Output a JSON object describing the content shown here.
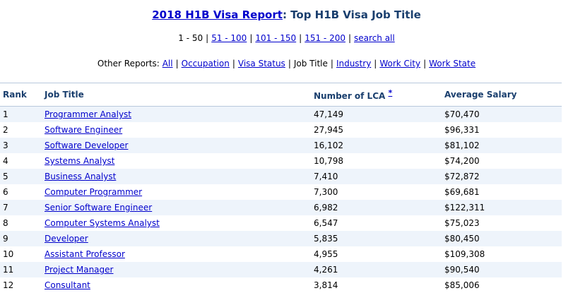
{
  "header": {
    "title_link": "2018 H1B Visa Report",
    "title_rest": ": Top H1B Visa Job Title"
  },
  "pager": {
    "current": "1 - 50",
    "links": [
      "51 - 100",
      "101 - 150",
      "151 - 200",
      "search all"
    ]
  },
  "reports": {
    "label": "Other Reports:",
    "all": "All",
    "occupation": "Occupation",
    "visa_status": "Visa Status",
    "job_title": "Job Title",
    "industry": "Industry",
    "work_city": "Work City",
    "work_state": "Work State"
  },
  "table": {
    "headers": {
      "rank": "Rank",
      "job_title": "Job Title",
      "count": "Number of LCA",
      "count_star": "*",
      "salary": "Average Salary"
    },
    "rows": [
      {
        "rank": "1",
        "title": "Programmer Analyst",
        "count": "47,149",
        "salary": "$70,470"
      },
      {
        "rank": "2",
        "title": "Software Engineer",
        "count": "27,945",
        "salary": "$96,331"
      },
      {
        "rank": "3",
        "title": "Software Developer",
        "count": "16,102",
        "salary": "$81,102"
      },
      {
        "rank": "4",
        "title": "Systems Analyst",
        "count": "10,798",
        "salary": "$74,200"
      },
      {
        "rank": "5",
        "title": "Business Analyst",
        "count": "7,410",
        "salary": "$72,872"
      },
      {
        "rank": "6",
        "title": "Computer Programmer",
        "count": "7,300",
        "salary": "$69,681"
      },
      {
        "rank": "7",
        "title": "Senior Software Engineer",
        "count": "6,982",
        "salary": "$122,311"
      },
      {
        "rank": "8",
        "title": "Computer Systems Analyst",
        "count": "6,547",
        "salary": "$75,023"
      },
      {
        "rank": "9",
        "title": "Developer",
        "count": "5,835",
        "salary": "$80,450"
      },
      {
        "rank": "10",
        "title": "Assistant Professor",
        "count": "4,955",
        "salary": "$109,308"
      },
      {
        "rank": "11",
        "title": "Project Manager",
        "count": "4,261",
        "salary": "$90,540"
      },
      {
        "rank": "12",
        "title": "Consultant",
        "count": "3,814",
        "salary": "$85,006"
      }
    ]
  },
  "colors": {
    "link": "#0000cc",
    "heading": "#1a3f6e",
    "row_alt": "#eef4fb"
  }
}
